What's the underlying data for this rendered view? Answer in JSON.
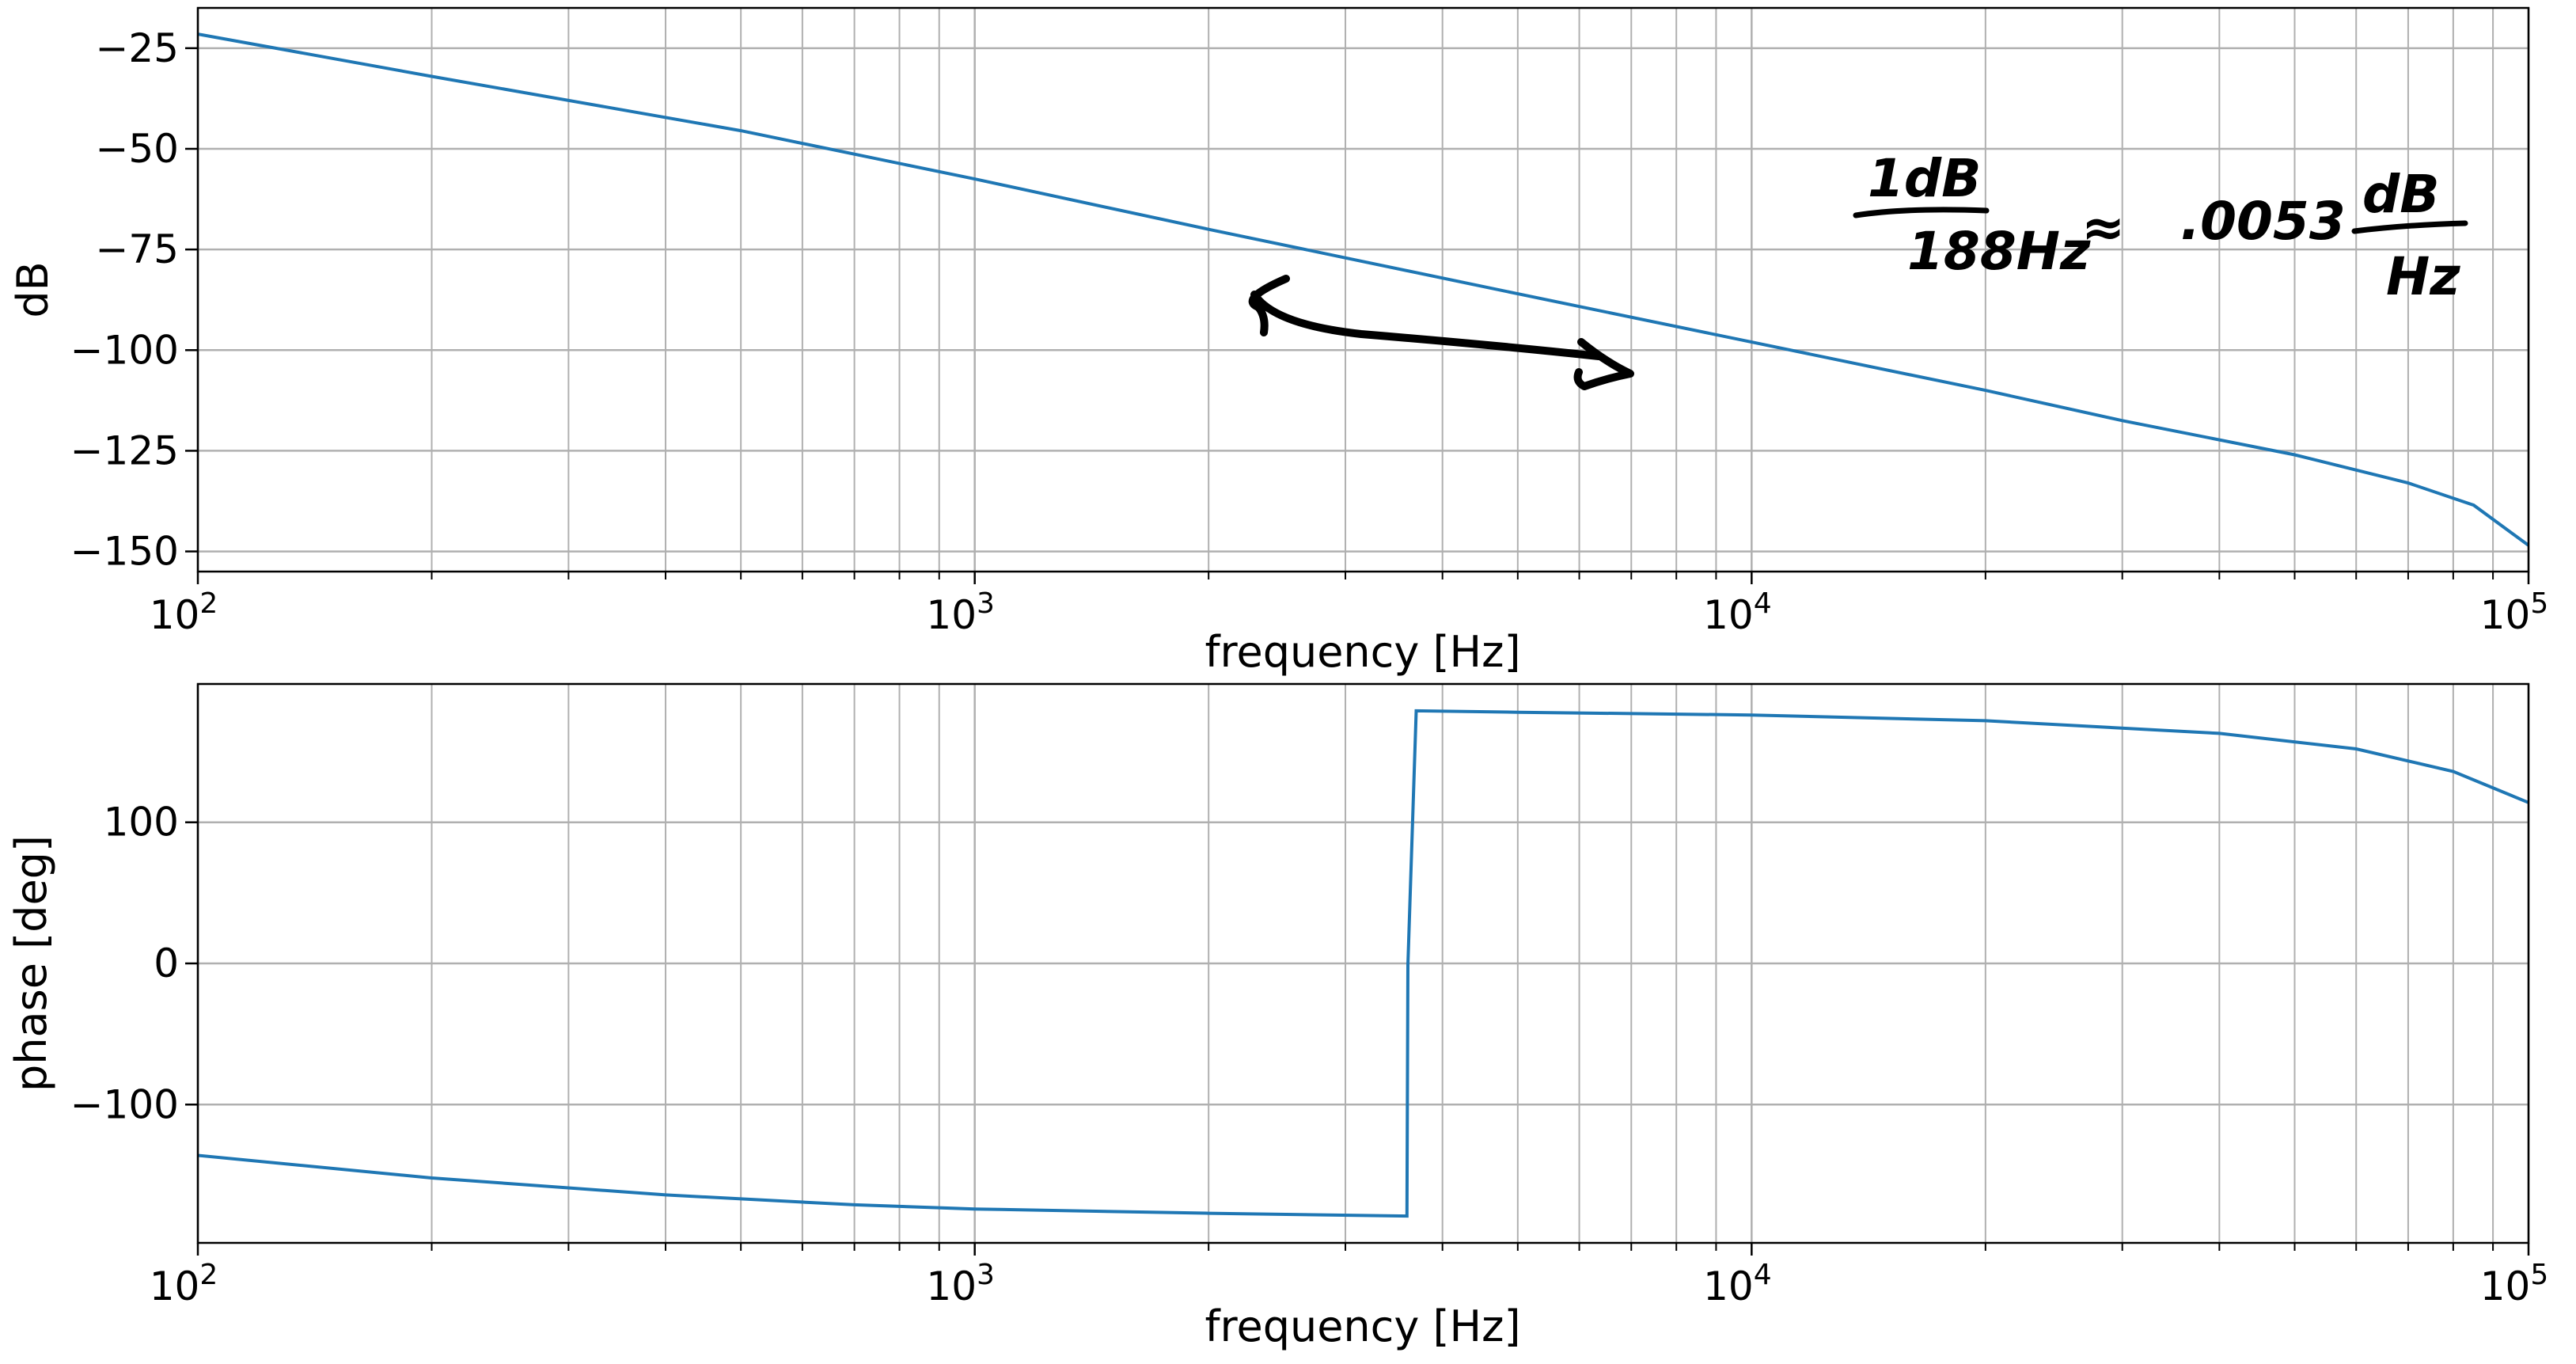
{
  "chart_data": [
    {
      "type": "line",
      "x_scale": "log",
      "xlim": [
        100,
        100000
      ],
      "ylim": [
        -155,
        -15
      ],
      "grid": true,
      "xlabel": "frequency [Hz]",
      "ylabel": "dB",
      "x_ticks": [
        100,
        1000,
        10000,
        100000
      ],
      "x_tick_labels": [
        {
          "base": "10",
          "exp": "2"
        },
        {
          "base": "10",
          "exp": "3"
        },
        {
          "base": "10",
          "exp": "4"
        },
        {
          "base": "10",
          "exp": "5"
        }
      ],
      "y_ticks": [
        -25,
        -50,
        -75,
        -100,
        -125,
        -150
      ],
      "y_tick_labels": [
        "−25",
        "−50",
        "−75",
        "−100",
        "−125",
        "−150"
      ],
      "series": [
        {
          "color": "#1f77b4",
          "x": [
            100,
            200,
            500,
            1000,
            2000,
            5000,
            10000,
            20000,
            30000,
            50000,
            70000,
            85000,
            100000
          ],
          "y": [
            -21.5,
            -32,
            -45.5,
            -57.5,
            -70,
            -86,
            -98,
            -110,
            -117.5,
            -126,
            -133,
            -138.5,
            -148.5
          ]
        }
      ],
      "annotations": {
        "handwritten_fraction_1_numerator": "1dB",
        "handwritten_fraction_1_denominator": "188Hz",
        "handwritten_approx": "≈",
        "handwritten_value": ".0053",
        "handwritten_fraction_2_numerator": "dB",
        "handwritten_fraction_2_denominator": "Hz",
        "handwritten_arrow": "double-headed arrow"
      }
    },
    {
      "type": "line",
      "x_scale": "log",
      "xlim": [
        100,
        100000
      ],
      "ylim": [
        -198,
        198
      ],
      "grid": true,
      "xlabel": "frequency [Hz]",
      "ylabel": "phase [deg]",
      "x_ticks": [
        100,
        1000,
        10000,
        100000
      ],
      "x_tick_labels": [
        {
          "base": "10",
          "exp": "2"
        },
        {
          "base": "10",
          "exp": "3"
        },
        {
          "base": "10",
          "exp": "4"
        },
        {
          "base": "10",
          "exp": "5"
        }
      ],
      "y_ticks": [
        100,
        0,
        -100
      ],
      "y_tick_labels": [
        "100",
        "0",
        "−100"
      ],
      "series": [
        {
          "color": "#1f77b4",
          "x": [
            100,
            200,
            400,
            700,
            1000,
            2000,
            3600,
            3610,
            3700,
            5000,
            10000,
            20000,
            40000,
            60000,
            80000,
            100000
          ],
          "y": [
            -136,
            -152,
            -164,
            -171,
            -174,
            -177,
            -179,
            -1,
            179,
            178,
            176,
            172,
            163,
            152,
            136,
            114
          ]
        }
      ]
    }
  ]
}
